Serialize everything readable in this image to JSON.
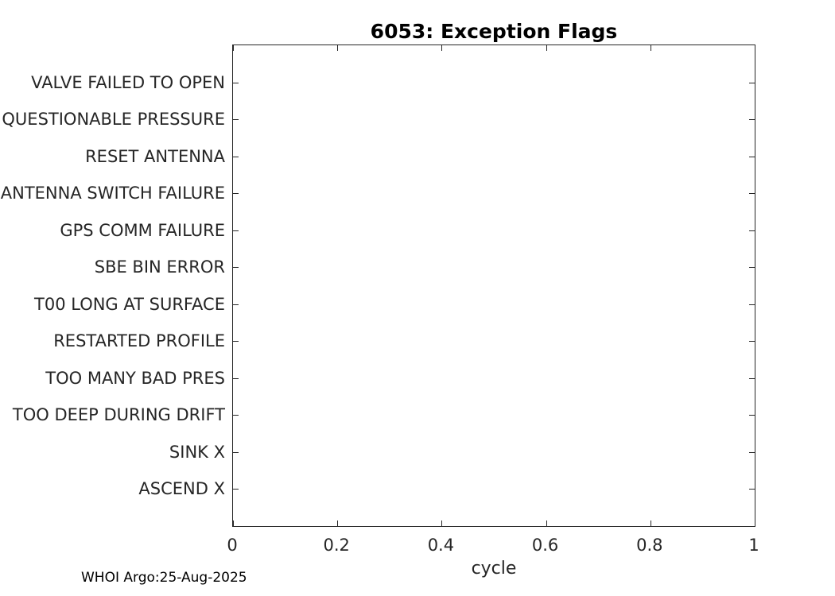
{
  "title": "6053: Exception Flags",
  "xlabel": "cycle",
  "footer": "WHOI Argo:25-Aug-2025",
  "colors": {
    "axis": "#262626",
    "title_text": "#000000",
    "background": "#ffffff"
  },
  "chart_data": {
    "type": "scatter",
    "title": "6053: Exception Flags",
    "xlabel": "cycle",
    "ylabel": "",
    "xlim": [
      0,
      1
    ],
    "x_ticks": [
      "0",
      "0.2",
      "0.4",
      "0.6",
      "0.8",
      "1"
    ],
    "x_tick_values": [
      0,
      0.2,
      0.4,
      0.6,
      0.8,
      1
    ],
    "categories": [
      "VALVE FAILED TO OPEN",
      "QUESTIONABLE PRESSURE",
      "RESET ANTENNA",
      "ANTENNA SWITCH FAILURE",
      "GPS COMM FAILURE",
      "SBE BIN ERROR",
      "T00 LONG AT SURFACE",
      "RESTARTED PROFILE",
      "TOO MANY BAD PRES",
      "TOO DEEP DURING DRIFT",
      "SINK X",
      "ASCEND X"
    ],
    "series": [],
    "grid": false,
    "legend": "none",
    "box": true,
    "tick_direction": "in"
  }
}
